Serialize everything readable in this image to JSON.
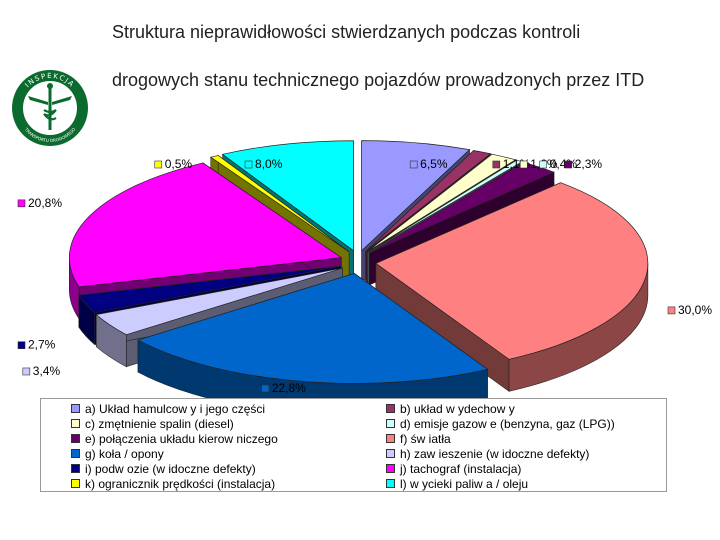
{
  "header": {
    "title": "Struktura nieprawidłowości stwierdzanych podczas kontroli drogowych stanu technicznego pojazdów prowadzonych przez ITD",
    "logo_top_text": "INSPEKCJA",
    "logo_bottom_text": "TRANSPORTU DROGOWEGO"
  },
  "chart_data": {
    "type": "pie",
    "three_d": true,
    "slices": [
      {
        "legend": "a) Układ hamulcow y i jego części",
        "label": "6,5%",
        "value": 6.5,
        "color": "#9999ff"
      },
      {
        "legend": "b) układ w ydechow y",
        "label": "1,1%",
        "value": 1.1,
        "color": "#993366"
      },
      {
        "legend": "c) zmętnienie spalin (diesel)",
        "label": "1,6%",
        "value": 1.6,
        "color": "#ffffcc"
      },
      {
        "legend": "d) emisje gazow e (benzyna, gaz (LPG))",
        "label": "0,4%",
        "value": 0.4,
        "color": "#ccffff"
      },
      {
        "legend": "e) połączenia układu kierow niczego",
        "label": "2,3%",
        "value": 2.3,
        "color": "#660066"
      },
      {
        "legend": "f) św iatła",
        "label": "30,0%",
        "value": 30.0,
        "color": "#ff8080"
      },
      {
        "legend": "g) koła / opony",
        "label": "22,8%",
        "value": 22.8,
        "color": "#0066cc"
      },
      {
        "legend": "h) zaw ieszenie (w idoczne defekty)",
        "label": "3,4%",
        "value": 3.4,
        "color": "#ccccff"
      },
      {
        "legend": "i) podw ozie (w idoczne defekty)",
        "label": "2,7%",
        "value": 2.7,
        "color": "#000080"
      },
      {
        "legend": "j) tachograf (instalacja)",
        "label": "20,8%",
        "value": 20.8,
        "color": "#ff00ff"
      },
      {
        "legend": "k) ogranicznik prędkości (instalacja)",
        "label": "0,5%",
        "value": 0.5,
        "color": "#ffff00"
      },
      {
        "legend": "l) w ycieki paliw a / oleju",
        "label": "8,0%",
        "value": 8.0,
        "color": "#00ffff"
      }
    ]
  }
}
